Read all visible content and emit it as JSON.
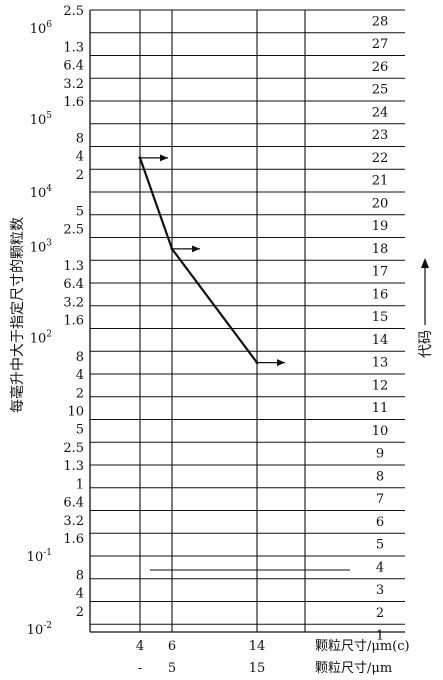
{
  "chart_data": {
    "type": "line",
    "ylabel": "每毫升中大于指定尺寸的颗粒数",
    "right_label": "代码",
    "x_rows": [
      {
        "label": "颗粒尺寸/μm(c)",
        "ticks": [
          "4",
          "6",
          "14"
        ]
      },
      {
        "label": "颗粒尺寸/μm",
        "ticks": [
          "-",
          "5",
          "15"
        ]
      }
    ],
    "y_scale": "log",
    "y_tick_labels": [
      "2.5",
      "10^6",
      "1.3",
      "6.4",
      "3.2",
      "1.6",
      "10^5",
      "8",
      "4",
      "2",
      "10^4",
      "5",
      "2.5",
      "10^3",
      "1.3",
      "6.4",
      "3.2",
      "1.6",
      "10^2",
      "8",
      "4",
      "2",
      "10",
      "5",
      "2.5",
      "1.3",
      "1",
      "6.4",
      "3.2",
      "1.6",
      "10^-1",
      "8",
      "4",
      "2",
      "10^-2"
    ],
    "codes": [
      28,
      27,
      26,
      25,
      24,
      23,
      22,
      21,
      20,
      19,
      18,
      17,
      16,
      15,
      14,
      13,
      12,
      11,
      10,
      9,
      8,
      7,
      6,
      5,
      4,
      3,
      2,
      1
    ],
    "series": [
      {
        "x": [
          "4",
          "6",
          "14"
        ],
        "code": [
          22,
          18,
          13
        ]
      }
    ]
  }
}
